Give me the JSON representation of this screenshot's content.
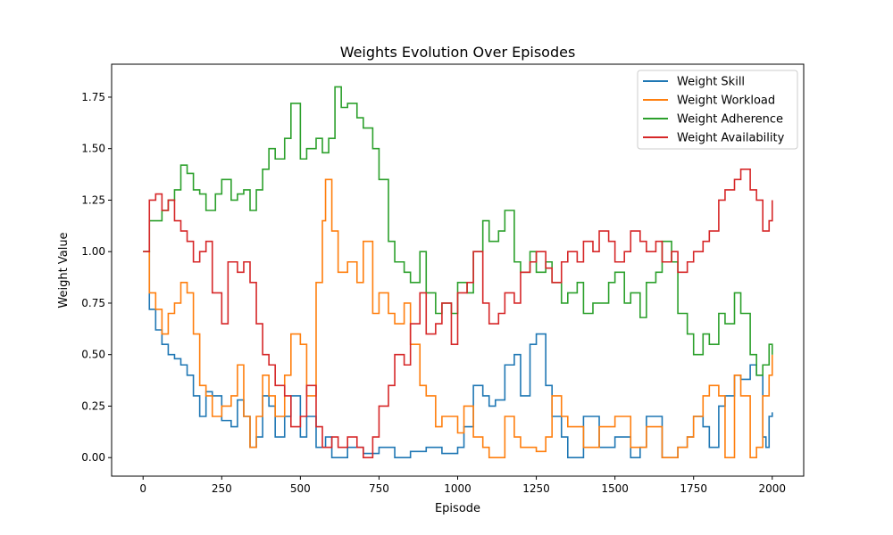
{
  "chart_data": {
    "type": "line",
    "title": "Weights Evolution Over Episodes",
    "xlabel": "Episode",
    "ylabel": "Weight Value",
    "xlim": [
      -100,
      2100
    ],
    "ylim": [
      -0.09,
      1.91
    ],
    "xticks": [
      0,
      250,
      500,
      750,
      1000,
      1250,
      1500,
      1750,
      2000
    ],
    "xtick_labels": [
      "0",
      "250",
      "500",
      "750",
      "1000",
      "1250",
      "1500",
      "1750",
      "2000"
    ],
    "yticks": [
      0.0,
      0.25,
      0.5,
      0.75,
      1.0,
      1.25,
      1.5,
      1.75
    ],
    "ytick_labels": [
      "0.00",
      "0.25",
      "0.50",
      "0.75",
      "1.00",
      "1.25",
      "1.50",
      "1.75"
    ],
    "grid": false,
    "legend_position": "top-right",
    "series": [
      {
        "name": "Weight Skill",
        "color": "#1f77b4",
        "x": [
          0,
          20,
          40,
          60,
          80,
          100,
          120,
          140,
          160,
          180,
          200,
          220,
          250,
          280,
          300,
          320,
          340,
          360,
          380,
          400,
          420,
          450,
          470,
          500,
          520,
          550,
          580,
          600,
          650,
          700,
          750,
          800,
          850,
          900,
          950,
          1000,
          1020,
          1050,
          1080,
          1100,
          1120,
          1150,
          1180,
          1200,
          1230,
          1250,
          1280,
          1300,
          1330,
          1350,
          1400,
          1450,
          1500,
          1550,
          1580,
          1600,
          1650,
          1700,
          1730,
          1750,
          1780,
          1800,
          1830,
          1850,
          1880,
          1900,
          1930,
          1950,
          1970,
          1980,
          1990,
          2000
        ],
        "y": [
          1.0,
          0.72,
          0.62,
          0.55,
          0.5,
          0.48,
          0.45,
          0.4,
          0.3,
          0.2,
          0.32,
          0.3,
          0.18,
          0.15,
          0.28,
          0.2,
          0.05,
          0.1,
          0.3,
          0.25,
          0.1,
          0.2,
          0.3,
          0.1,
          0.2,
          0.05,
          0.1,
          0.0,
          0.05,
          0.02,
          0.05,
          0.0,
          0.03,
          0.05,
          0.02,
          0.05,
          0.15,
          0.35,
          0.3,
          0.25,
          0.28,
          0.45,
          0.5,
          0.3,
          0.55,
          0.6,
          0.35,
          0.2,
          0.1,
          0.0,
          0.2,
          0.05,
          0.1,
          0.0,
          0.05,
          0.2,
          0.0,
          0.05,
          0.1,
          0.2,
          0.15,
          0.05,
          0.25,
          0.3,
          0.4,
          0.38,
          0.45,
          0.4,
          0.1,
          0.05,
          0.2,
          0.22
        ]
      },
      {
        "name": "Weight Workload",
        "color": "#ff7f0e",
        "x": [
          0,
          20,
          40,
          60,
          80,
          100,
          120,
          140,
          160,
          180,
          200,
          220,
          250,
          280,
          300,
          320,
          340,
          360,
          380,
          400,
          420,
          450,
          470,
          500,
          520,
          550,
          570,
          580,
          600,
          620,
          650,
          680,
          700,
          730,
          750,
          780,
          800,
          830,
          850,
          880,
          900,
          930,
          950,
          1000,
          1020,
          1050,
          1080,
          1100,
          1150,
          1180,
          1200,
          1250,
          1280,
          1300,
          1330,
          1350,
          1400,
          1450,
          1500,
          1550,
          1600,
          1650,
          1700,
          1730,
          1750,
          1780,
          1800,
          1830,
          1850,
          1880,
          1900,
          1930,
          1950,
          1970,
          1990,
          2000
        ],
        "y": [
          1.0,
          0.8,
          0.72,
          0.6,
          0.7,
          0.75,
          0.85,
          0.8,
          0.6,
          0.35,
          0.3,
          0.2,
          0.25,
          0.3,
          0.45,
          0.2,
          0.05,
          0.2,
          0.4,
          0.3,
          0.2,
          0.4,
          0.6,
          0.55,
          0.3,
          0.85,
          1.15,
          1.35,
          1.1,
          0.9,
          0.95,
          0.85,
          1.05,
          0.7,
          0.8,
          0.7,
          0.65,
          0.75,
          0.55,
          0.35,
          0.3,
          0.15,
          0.2,
          0.12,
          0.25,
          0.1,
          0.05,
          0.0,
          0.2,
          0.1,
          0.05,
          0.03,
          0.1,
          0.3,
          0.2,
          0.15,
          0.05,
          0.15,
          0.2,
          0.05,
          0.15,
          0.0,
          0.05,
          0.1,
          0.2,
          0.3,
          0.35,
          0.3,
          0.0,
          0.4,
          0.3,
          0.0,
          0.05,
          0.3,
          0.4,
          0.5
        ]
      },
      {
        "name": "Weight Adherence",
        "color": "#2ca02c",
        "x": [
          0,
          20,
          40,
          60,
          80,
          100,
          120,
          140,
          160,
          180,
          200,
          230,
          250,
          280,
          300,
          320,
          340,
          360,
          380,
          400,
          420,
          450,
          470,
          500,
          520,
          550,
          570,
          590,
          610,
          630,
          650,
          680,
          700,
          730,
          750,
          780,
          800,
          830,
          850,
          880,
          900,
          930,
          950,
          980,
          1000,
          1030,
          1050,
          1080,
          1100,
          1130,
          1150,
          1180,
          1200,
          1230,
          1250,
          1280,
          1300,
          1330,
          1350,
          1380,
          1400,
          1430,
          1450,
          1480,
          1500,
          1530,
          1550,
          1580,
          1600,
          1630,
          1650,
          1680,
          1700,
          1730,
          1750,
          1780,
          1800,
          1830,
          1850,
          1880,
          1900,
          1930,
          1950,
          1970,
          1990,
          2000
        ],
        "y": [
          1.0,
          1.15,
          1.15,
          1.2,
          1.25,
          1.3,
          1.42,
          1.38,
          1.3,
          1.28,
          1.2,
          1.28,
          1.35,
          1.25,
          1.28,
          1.3,
          1.2,
          1.3,
          1.4,
          1.5,
          1.45,
          1.55,
          1.72,
          1.45,
          1.5,
          1.55,
          1.48,
          1.55,
          1.8,
          1.7,
          1.72,
          1.65,
          1.6,
          1.5,
          1.35,
          1.05,
          0.95,
          0.9,
          0.85,
          1.0,
          0.8,
          0.7,
          0.75,
          0.7,
          0.85,
          0.8,
          1.0,
          1.15,
          1.05,
          1.1,
          1.2,
          0.95,
          0.9,
          1.0,
          0.9,
          0.95,
          0.85,
          0.75,
          0.8,
          0.85,
          0.7,
          0.75,
          0.75,
          0.85,
          0.9,
          0.75,
          0.8,
          0.68,
          0.85,
          0.9,
          1.05,
          0.95,
          0.7,
          0.6,
          0.5,
          0.6,
          0.55,
          0.7,
          0.65,
          0.8,
          0.7,
          0.5,
          0.4,
          0.45,
          0.55,
          0.5
        ]
      },
      {
        "name": "Weight Availability",
        "color": "#d62728",
        "x": [
          0,
          20,
          40,
          60,
          80,
          100,
          120,
          140,
          160,
          180,
          200,
          220,
          250,
          270,
          300,
          320,
          340,
          360,
          380,
          400,
          420,
          450,
          470,
          500,
          520,
          550,
          570,
          600,
          620,
          650,
          680,
          700,
          730,
          750,
          780,
          800,
          830,
          850,
          880,
          900,
          930,
          950,
          980,
          1000,
          1030,
          1050,
          1080,
          1100,
          1130,
          1150,
          1180,
          1200,
          1230,
          1250,
          1280,
          1300,
          1330,
          1350,
          1380,
          1400,
          1430,
          1450,
          1480,
          1500,
          1530,
          1550,
          1580,
          1600,
          1630,
          1650,
          1680,
          1700,
          1730,
          1750,
          1780,
          1800,
          1830,
          1850,
          1880,
          1900,
          1930,
          1950,
          1970,
          1990,
          2000
        ],
        "y": [
          1.0,
          1.25,
          1.28,
          1.2,
          1.25,
          1.15,
          1.1,
          1.05,
          0.95,
          1.0,
          1.05,
          0.8,
          0.65,
          0.95,
          0.9,
          0.95,
          0.85,
          0.65,
          0.5,
          0.45,
          0.35,
          0.3,
          0.15,
          0.2,
          0.35,
          0.15,
          0.05,
          0.1,
          0.05,
          0.1,
          0.05,
          0.0,
          0.1,
          0.25,
          0.35,
          0.5,
          0.45,
          0.65,
          0.8,
          0.6,
          0.65,
          0.75,
          0.55,
          0.8,
          0.85,
          1.0,
          0.75,
          0.65,
          0.7,
          0.8,
          0.75,
          0.9,
          0.95,
          1.0,
          0.92,
          0.85,
          0.95,
          1.0,
          0.95,
          1.05,
          1.0,
          1.1,
          1.05,
          0.95,
          1.0,
          1.1,
          1.05,
          1.0,
          1.05,
          0.95,
          1.0,
          0.9,
          0.95,
          1.0,
          1.05,
          1.1,
          1.25,
          1.3,
          1.35,
          1.4,
          1.3,
          1.25,
          1.1,
          1.15,
          1.25
        ]
      }
    ]
  }
}
